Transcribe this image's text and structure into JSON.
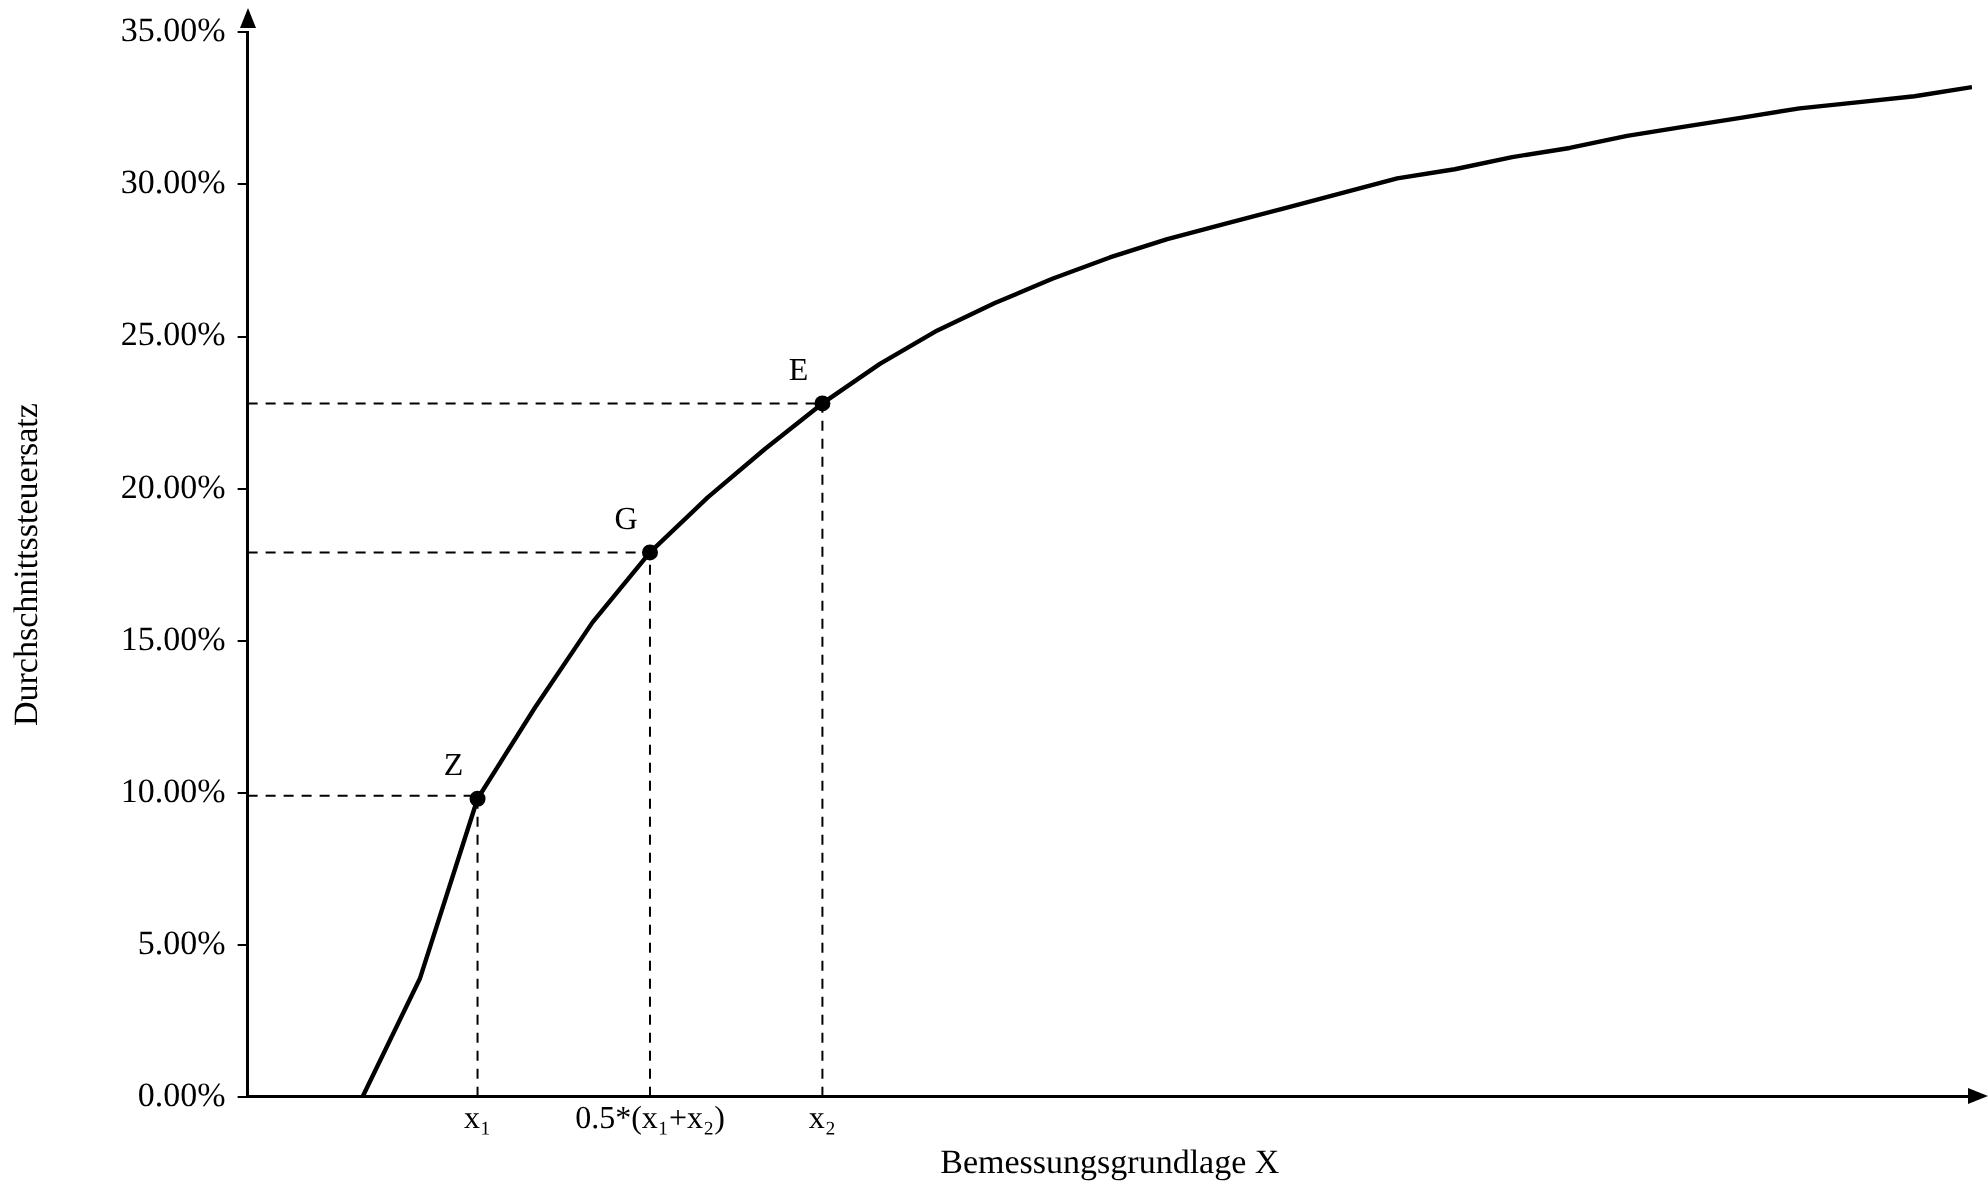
{
  "chart_data": {
    "type": "line",
    "xlabel": "Bemessungsgrundlage X",
    "ylabel": "Durchschnittssteuersatz",
    "categories": [
      null,
      null,
      null,
      null,
      "x₁",
      null,
      null,
      "0.5*(x₁+x₂)",
      null,
      null,
      "x₂",
      null,
      null,
      null,
      null,
      null,
      null,
      null,
      null,
      null,
      null,
      null,
      null,
      null,
      null,
      null,
      null,
      null,
      null,
      null,
      null
    ],
    "ylim": [
      0,
      35
    ],
    "yticks": [
      {
        "value": 0,
        "label": "0.00%"
      },
      {
        "value": 5,
        "label": "5.00%"
      },
      {
        "value": 10,
        "label": "10.00%"
      },
      {
        "value": 15,
        "label": "15.00%"
      },
      {
        "value": 20,
        "label": "20.00%"
      },
      {
        "value": 25,
        "label": "25.00%"
      },
      {
        "value": 30,
        "label": "30.00%"
      },
      {
        "value": 35,
        "label": "35.00%"
      }
    ],
    "grid": false,
    "legend": false,
    "series": [
      {
        "type": "line",
        "color": "#000000",
        "values": [
          null,
          null,
          0,
          3.9,
          9.8,
          12.8,
          15.6,
          17.9,
          19.7,
          21.3,
          22.8,
          24.1,
          25.2,
          26.1,
          26.9,
          27.6,
          28.2,
          28.7,
          29.2,
          29.7,
          30.2,
          30.5,
          30.9,
          31.2,
          31.6,
          31.9,
          32.2,
          32.5,
          32.7,
          32.9,
          33.2
        ]
      },
      {
        "type": "line",
        "line_style": "dashed",
        "color": "#000000",
        "values": [
          9.9,
          9.9,
          9.9,
          9.9,
          9.9,
          null,
          null,
          null,
          null,
          null,
          null,
          null,
          null,
          null,
          null,
          null,
          null,
          null,
          null,
          null,
          null,
          null,
          null,
          null,
          null,
          null,
          null,
          null,
          null,
          null,
          null
        ]
      },
      {
        "type": "line",
        "line_style": "dashed",
        "color": "#000000",
        "values": [
          17.9,
          17.9,
          17.9,
          17.9,
          17.9,
          17.9,
          17.9,
          17.9,
          null,
          null,
          null,
          null,
          null,
          null,
          null,
          null,
          null,
          null,
          null,
          null,
          null,
          null,
          null,
          null,
          null,
          null,
          null,
          null,
          null,
          null,
          null
        ]
      },
      {
        "type": "line",
        "line_style": "dashed",
        "color": "#000000",
        "values": [
          22.8,
          22.8,
          22.8,
          22.8,
          22.8,
          22.8,
          22.8,
          22.8,
          22.8,
          22.8,
          22.8,
          null,
          null,
          null,
          null,
          null,
          null,
          null,
          null,
          null,
          null,
          null,
          null,
          null,
          null,
          null,
          null,
          null,
          null,
          null,
          null
        ]
      },
      {
        "type": "line",
        "line_style": "dashed",
        "color": "#000000",
        "x": [
          "x₁",
          "x₁"
        ],
        "values": [
          0,
          9.8
        ]
      },
      {
        "type": "line",
        "line_style": "dashed",
        "color": "#000000",
        "x": [
          "0.5*(x₁+x₂)",
          "0.5*(x₁+x₂)"
        ],
        "values": [
          0,
          17.9
        ]
      },
      {
        "type": "line",
        "line_style": "dashed",
        "color": "#000000",
        "x": [
          "x₂",
          "x₂"
        ],
        "values": [
          0,
          22.8
        ]
      },
      {
        "type": "scatter",
        "marker": "circle",
        "color": "#000000",
        "x": [
          "x₁",
          "0.5*(x₁+x₂)",
          "x₂"
        ],
        "values": [
          9.8,
          17.9,
          22.8
        ]
      }
    ],
    "annotations": [
      {
        "text": "Z",
        "x": "x₁",
        "y": 9.8
      },
      {
        "text": "G",
        "x": "0.5*(x₁+x₂)",
        "y": 17.9
      },
      {
        "text": "E",
        "x": "x₂",
        "y": 22.8
      }
    ]
  }
}
